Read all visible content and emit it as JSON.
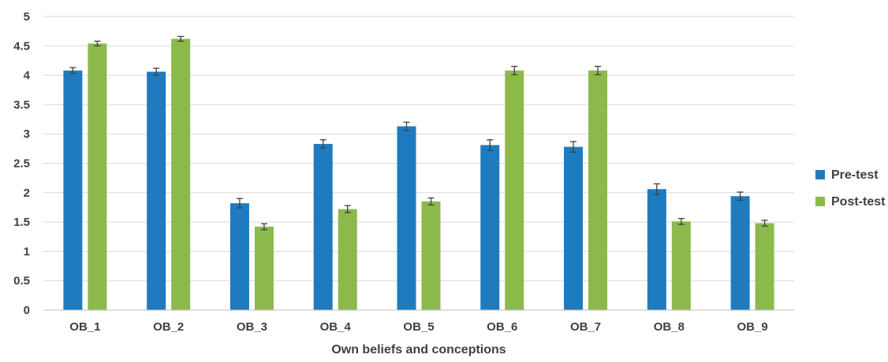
{
  "chart_data": {
    "type": "bar",
    "title": "",
    "xlabel": "Own beliefs and conceptions",
    "ylabel": "",
    "ylim": [
      0,
      5
    ],
    "yticks": [
      "0",
      "0.5",
      "1",
      "1.5",
      "2",
      "2.5",
      "3",
      "3.5",
      "4",
      "4.5",
      "5"
    ],
    "grid": true,
    "legend_position": "right",
    "categories": [
      "OB_1",
      "OB_2",
      "OB_3",
      "OB_4",
      "OB_5",
      "OB_6",
      "OB_7",
      "OB_8",
      "OB_9"
    ],
    "series": [
      {
        "name": "Pre-test",
        "color": "#1f7bbf",
        "values": [
          4.08,
          4.06,
          1.82,
          2.83,
          3.13,
          2.81,
          2.78,
          2.06,
          1.94
        ],
        "errors": [
          0.05,
          0.06,
          0.08,
          0.07,
          0.07,
          0.09,
          0.09,
          0.09,
          0.07
        ]
      },
      {
        "name": "Post-test",
        "color": "#8cb94c",
        "values": [
          4.54,
          4.62,
          1.42,
          1.72,
          1.85,
          4.08,
          4.08,
          1.51,
          1.48
        ],
        "errors": [
          0.04,
          0.04,
          0.05,
          0.06,
          0.06,
          0.07,
          0.07,
          0.05,
          0.05
        ]
      }
    ]
  }
}
